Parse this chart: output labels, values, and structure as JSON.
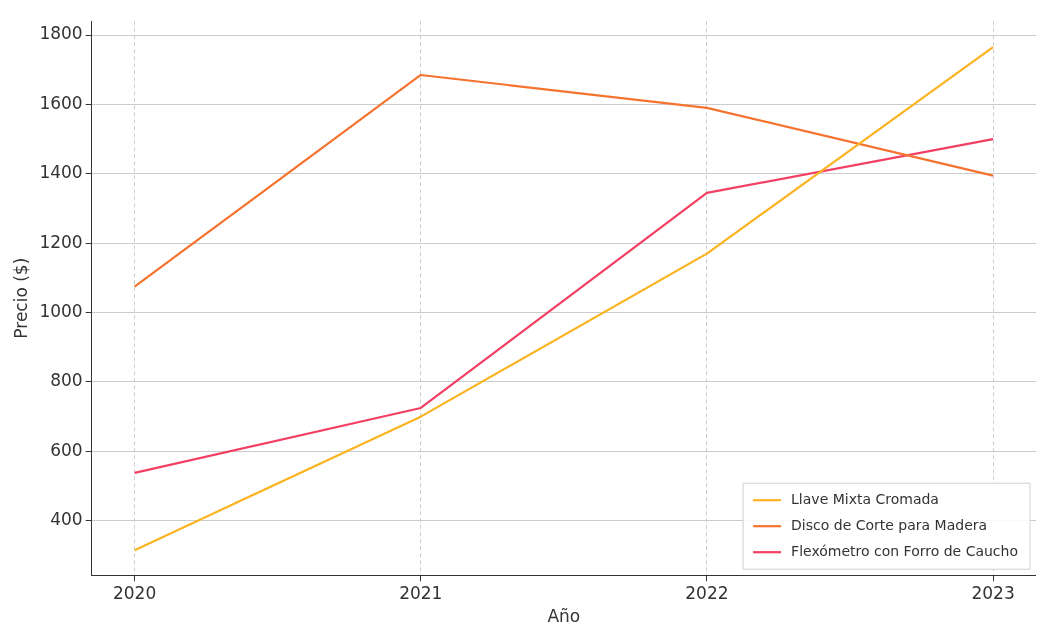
{
  "chart_data": {
    "type": "line",
    "xlabel": "Año",
    "ylabel": "Precio ($)",
    "x": [
      2020,
      2021,
      2022,
      2023
    ],
    "series": [
      {
        "name": "Llave Mixta Cromada",
        "color": "#fbb321",
        "values": [
          315,
          700,
          1170,
          1765
        ]
      },
      {
        "name": "Disco de Corte para Madera",
        "color": "#f5732e",
        "values": [
          1075,
          1685,
          1590,
          1395
        ]
      },
      {
        "name": "Flexómetro con Forro de Caucho",
        "color": "#f23f62",
        "values": [
          538,
          725,
          1345,
          1500
        ]
      }
    ],
    "xlim": [
      2019.85,
      2023.15
    ],
    "xticks": [
      2020,
      2021,
      2022,
      2023
    ],
    "ylim": [
      243,
      1840
    ],
    "yticks": [
      400,
      600,
      800,
      1000,
      1200,
      1400,
      1600,
      1800
    ],
    "grid": true,
    "legend": "bottom right",
    "marker": "none",
    "line_style": "solid"
  }
}
